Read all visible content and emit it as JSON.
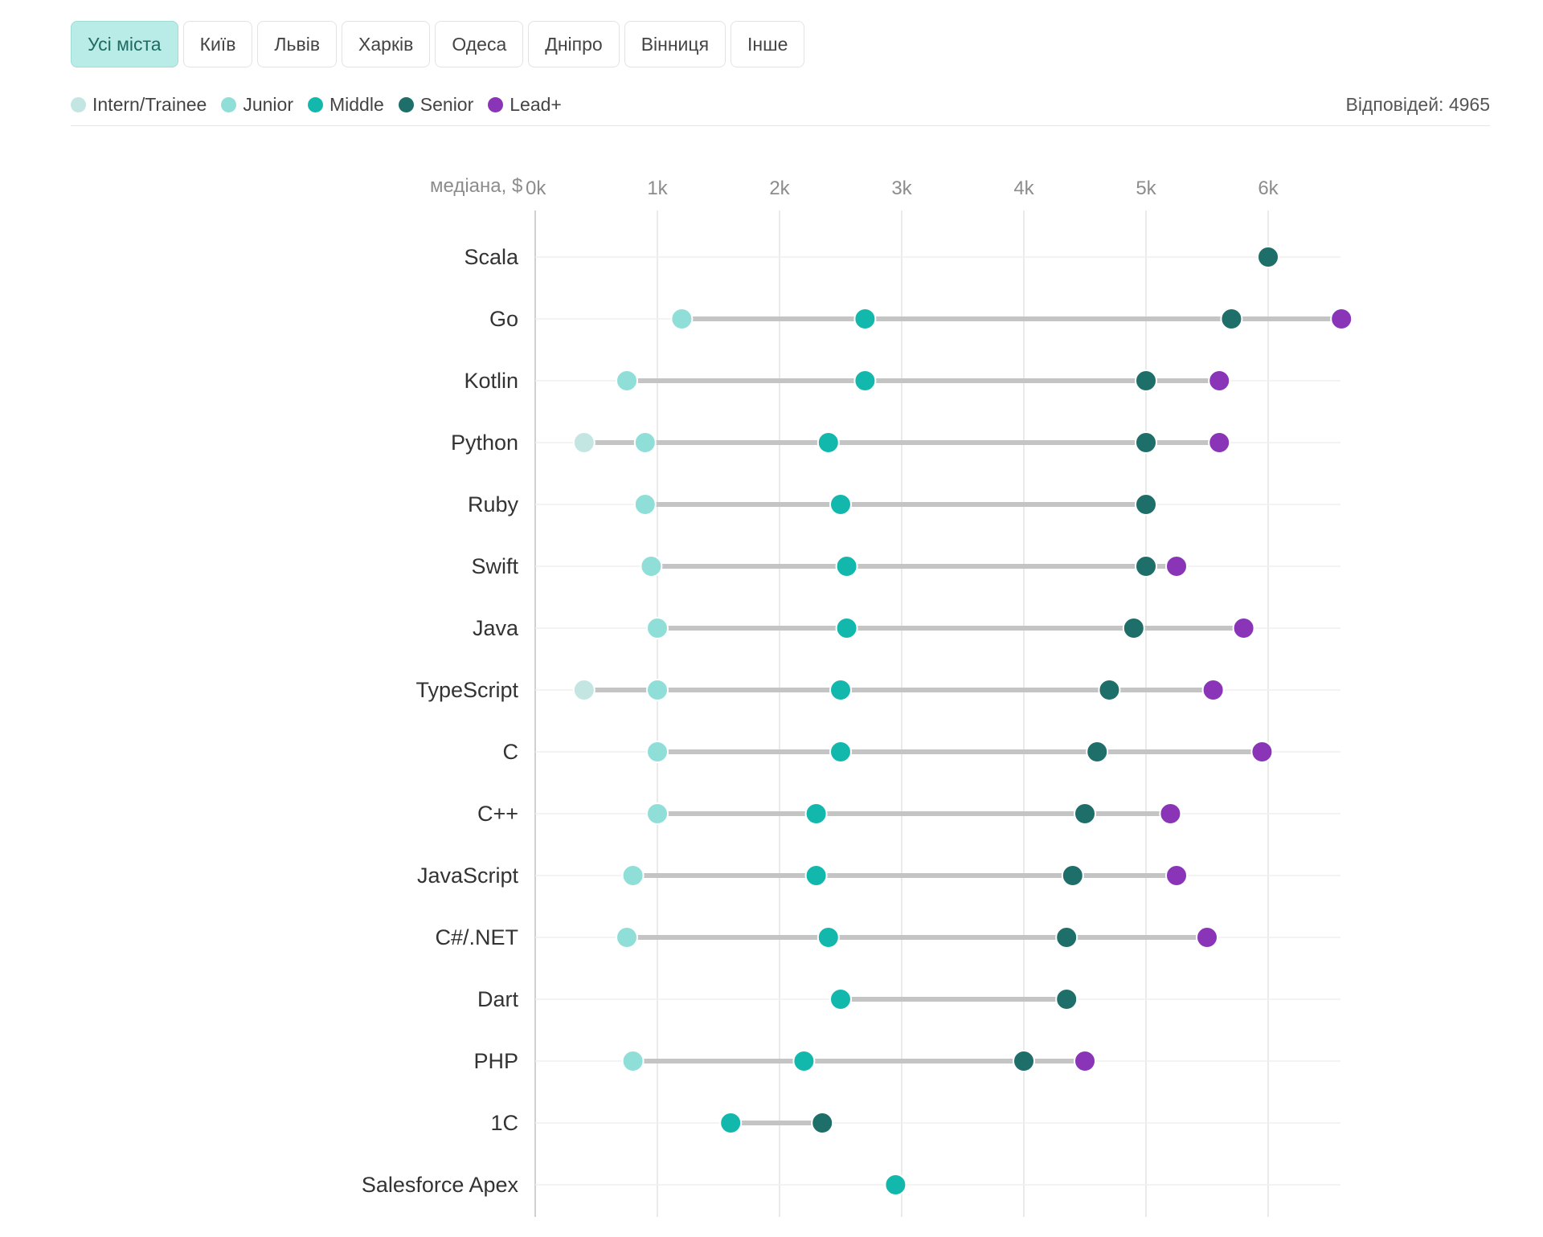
{
  "tabs": [
    {
      "label": "Усі міста",
      "active": true
    },
    {
      "label": "Київ",
      "active": false
    },
    {
      "label": "Львів",
      "active": false
    },
    {
      "label": "Харків",
      "active": false
    },
    {
      "label": "Одеса",
      "active": false
    },
    {
      "label": "Дніпро",
      "active": false
    },
    {
      "label": "Вінниця",
      "active": false
    },
    {
      "label": "Інше",
      "active": false
    }
  ],
  "legend": [
    {
      "label": "Intern/Trainee",
      "color": "#c3e6e3"
    },
    {
      "label": "Junior",
      "color": "#8fdfd8"
    },
    {
      "label": "Middle",
      "color": "#13b8ad"
    },
    {
      "label": "Senior",
      "color": "#1e6e69"
    },
    {
      "label": "Lead+",
      "color": "#8a35b8"
    }
  ],
  "responses": "Відповідей: 4965",
  "chart_data": {
    "type": "scatter",
    "subtype": "dumbbell",
    "axis_prefix": "медіана, $",
    "x_ticks": [
      {
        "value": 0,
        "label": "0k"
      },
      {
        "value": 1000,
        "label": "1k"
      },
      {
        "value": 2000,
        "label": "2k"
      },
      {
        "value": 3000,
        "label": "3k"
      },
      {
        "value": 4000,
        "label": "4k"
      },
      {
        "value": 5000,
        "label": "5k"
      },
      {
        "value": 6000,
        "label": "6k"
      }
    ],
    "xlim": [
      0,
      6600
    ],
    "grid": true,
    "legend_position": "top-left",
    "series_order": [
      "Intern/Trainee",
      "Junior",
      "Middle",
      "Senior",
      "Lead+"
    ],
    "categories": [
      "Scala",
      "Go",
      "Kotlin",
      "Python",
      "Ruby",
      "Swift",
      "Java",
      "TypeScript",
      "C",
      "C++",
      "JavaScript",
      "C#/.NET",
      "Dart",
      "PHP",
      "1C",
      "Salesforce Apex"
    ],
    "values": [
      [
        null,
        null,
        null,
        6000,
        null
      ],
      [
        null,
        1200,
        2700,
        5700,
        6600
      ],
      [
        null,
        750,
        2700,
        5000,
        5600
      ],
      [
        400,
        900,
        2400,
        5000,
        5600
      ],
      [
        null,
        900,
        2500,
        5000,
        null
      ],
      [
        null,
        950,
        2550,
        5000,
        5250
      ],
      [
        null,
        1000,
        2550,
        4900,
        5800
      ],
      [
        400,
        1000,
        2500,
        4700,
        5550
      ],
      [
        null,
        1000,
        2500,
        4600,
        5950
      ],
      [
        null,
        1000,
        2300,
        4500,
        5200
      ],
      [
        null,
        800,
        2300,
        4400,
        5250
      ],
      [
        null,
        750,
        2400,
        4350,
        5500
      ],
      [
        null,
        null,
        2500,
        4350,
        null
      ],
      [
        null,
        800,
        2200,
        4000,
        4500
      ],
      [
        null,
        null,
        1600,
        2350,
        null
      ],
      [
        null,
        null,
        2950,
        null,
        null
      ]
    ]
  }
}
